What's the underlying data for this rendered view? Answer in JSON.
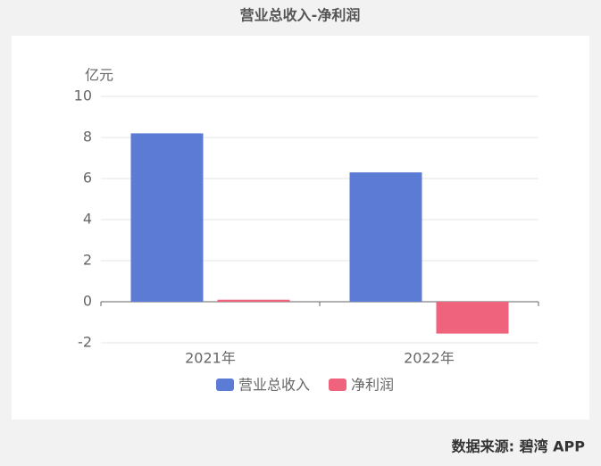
{
  "chart_data": {
    "type": "bar",
    "title": "营业总收入-净利润",
    "y_unit": "亿元",
    "categories": [
      "2021年",
      "2022年"
    ],
    "series": [
      {
        "name": "营业总收入",
        "color": "#5b7bd5",
        "values": [
          8.2,
          6.3
        ]
      },
      {
        "name": "净利润",
        "color": "#f0637c",
        "values": [
          0.1,
          -1.55
        ]
      }
    ],
    "ylim": [
      -2,
      10
    ],
    "yticks": [
      -2,
      0,
      2,
      4,
      6,
      8,
      10
    ],
    "grid": true,
    "legend": "bottom",
    "source": "数据来源: 碧湾 APP"
  }
}
